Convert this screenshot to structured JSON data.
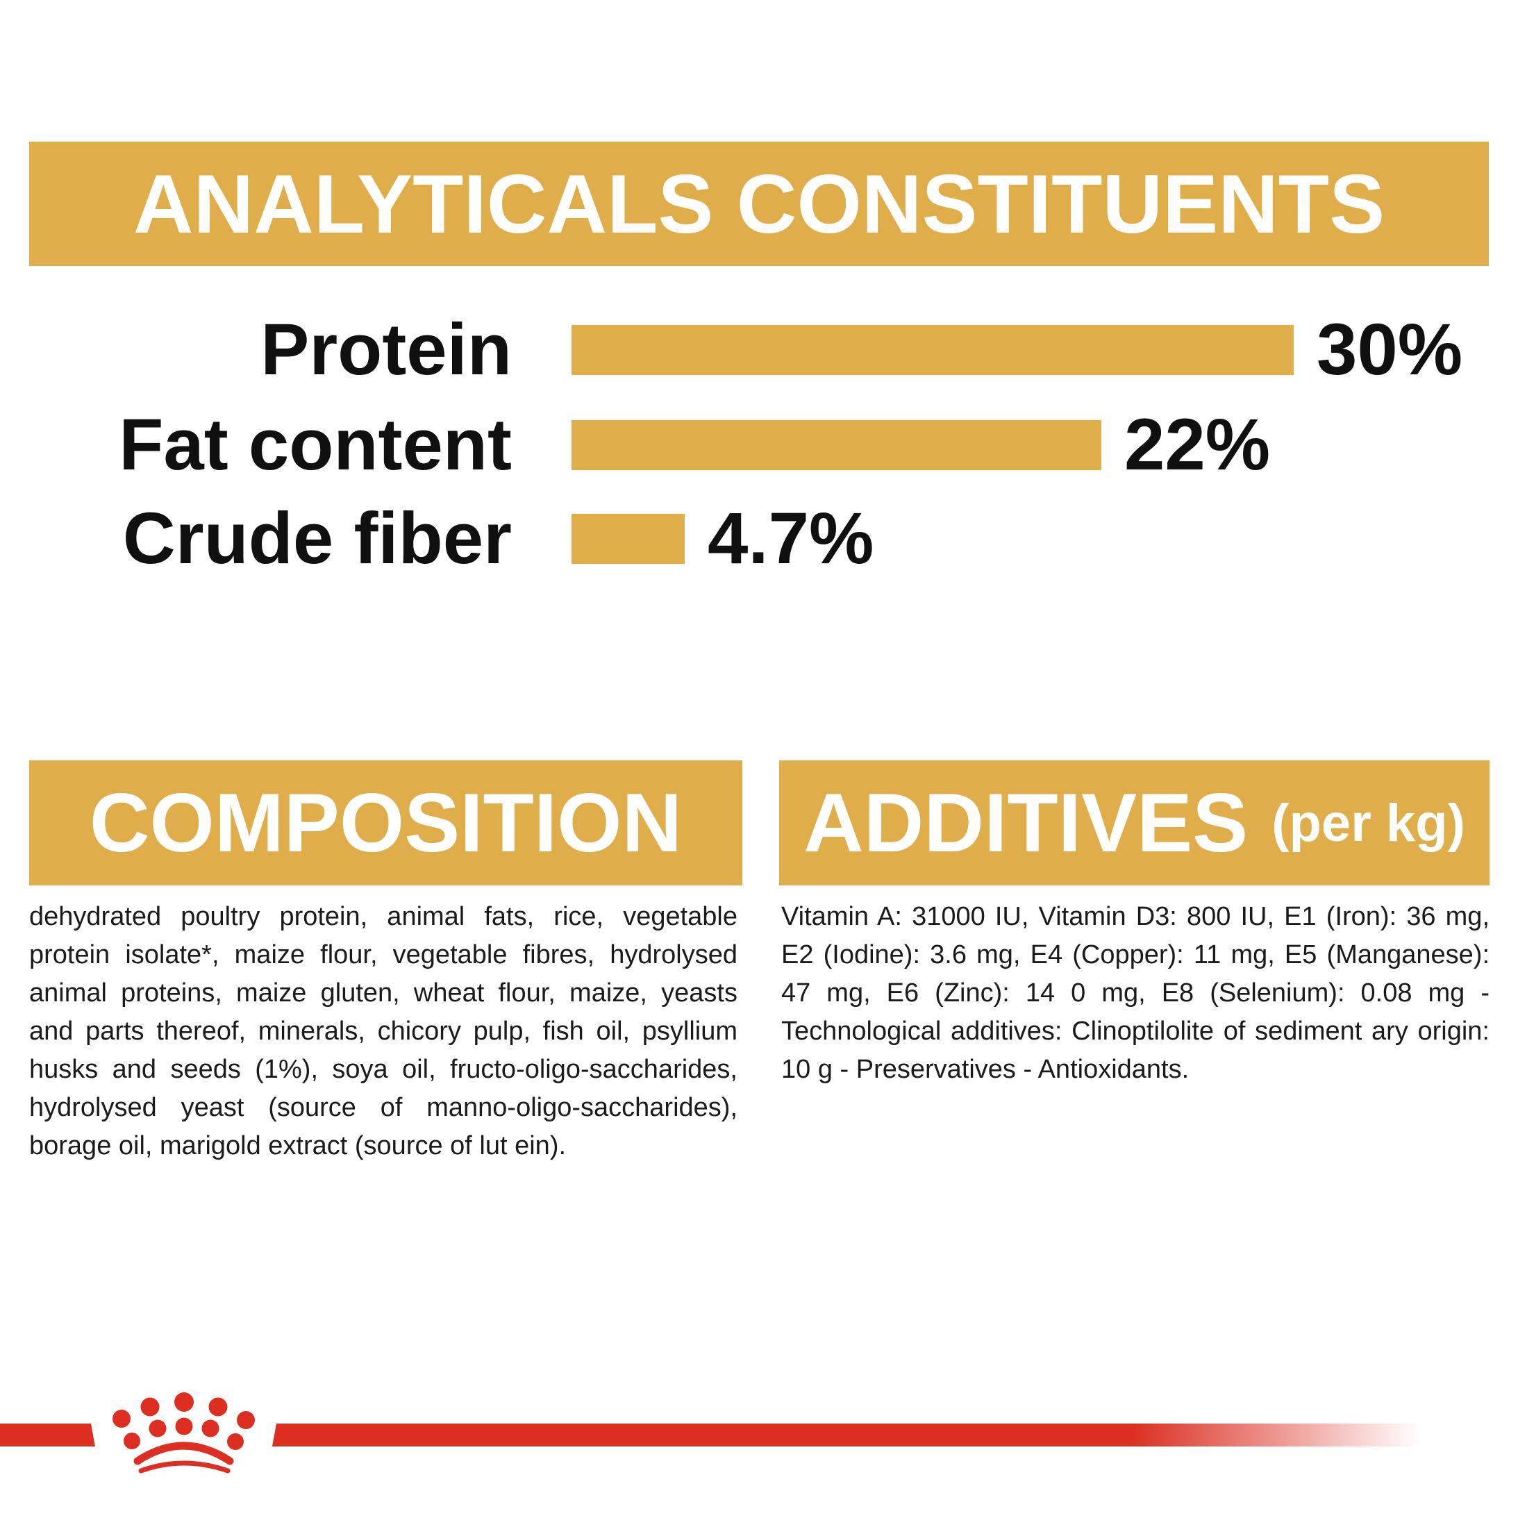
{
  "header": {
    "title": "ANALYTICALS CONSTITUENTS"
  },
  "chart_data": {
    "type": "bar",
    "orientation": "horizontal",
    "title": "ANALYTICALS CONSTITUENTS",
    "categories": [
      "Protein",
      "Fat content",
      "Crude fiber"
    ],
    "values": [
      30,
      22,
      4.7
    ],
    "value_labels": [
      "30%",
      "22%",
      "4.7%"
    ],
    "xlabel": "",
    "ylabel": "",
    "xlim": [
      0,
      31
    ],
    "grid": false,
    "legend": false,
    "bar_color": "#DFAE4B",
    "label_color": "#101010"
  },
  "sections": {
    "composition": {
      "title": "COMPOSITION",
      "body": "dehydrated poultry protein, animal fats, rice, vegetable protein isolate*, maize flour, vegetable fibres, hydrolysed animal proteins, maize gluten, wheat flour, maize, yeasts and parts thereof, minerals, chicory pulp, fish oil, psyllium husks and seeds (1%), soya oil, fructo-oligo-saccharides, hydrolysed yeast (source of manno-oligo-saccharides), borage oil, marigold extract (source of lut ein)."
    },
    "additives": {
      "title": "ADDITIVES",
      "unit_label": "(per kg)",
      "body": "Vitamin A: 31000 IU, Vitamin D3: 800 IU, E1 (Iron): 36 mg, E2 (Iodine): 3.6 mg, E4 (Copper): 11 mg, E5 (Manganese): 47 mg, E6 (Zinc): 14 0 mg, E8 (Selenium): 0.08 mg -Technological additives: Clinoptilolite of sediment ary origin: 10 g - Preservatives - Antioxidants."
    }
  },
  "branding": {
    "logo": "royal-canin-crown",
    "accent_gold": "#DFAE4B",
    "accent_red": "#DC2F21"
  }
}
